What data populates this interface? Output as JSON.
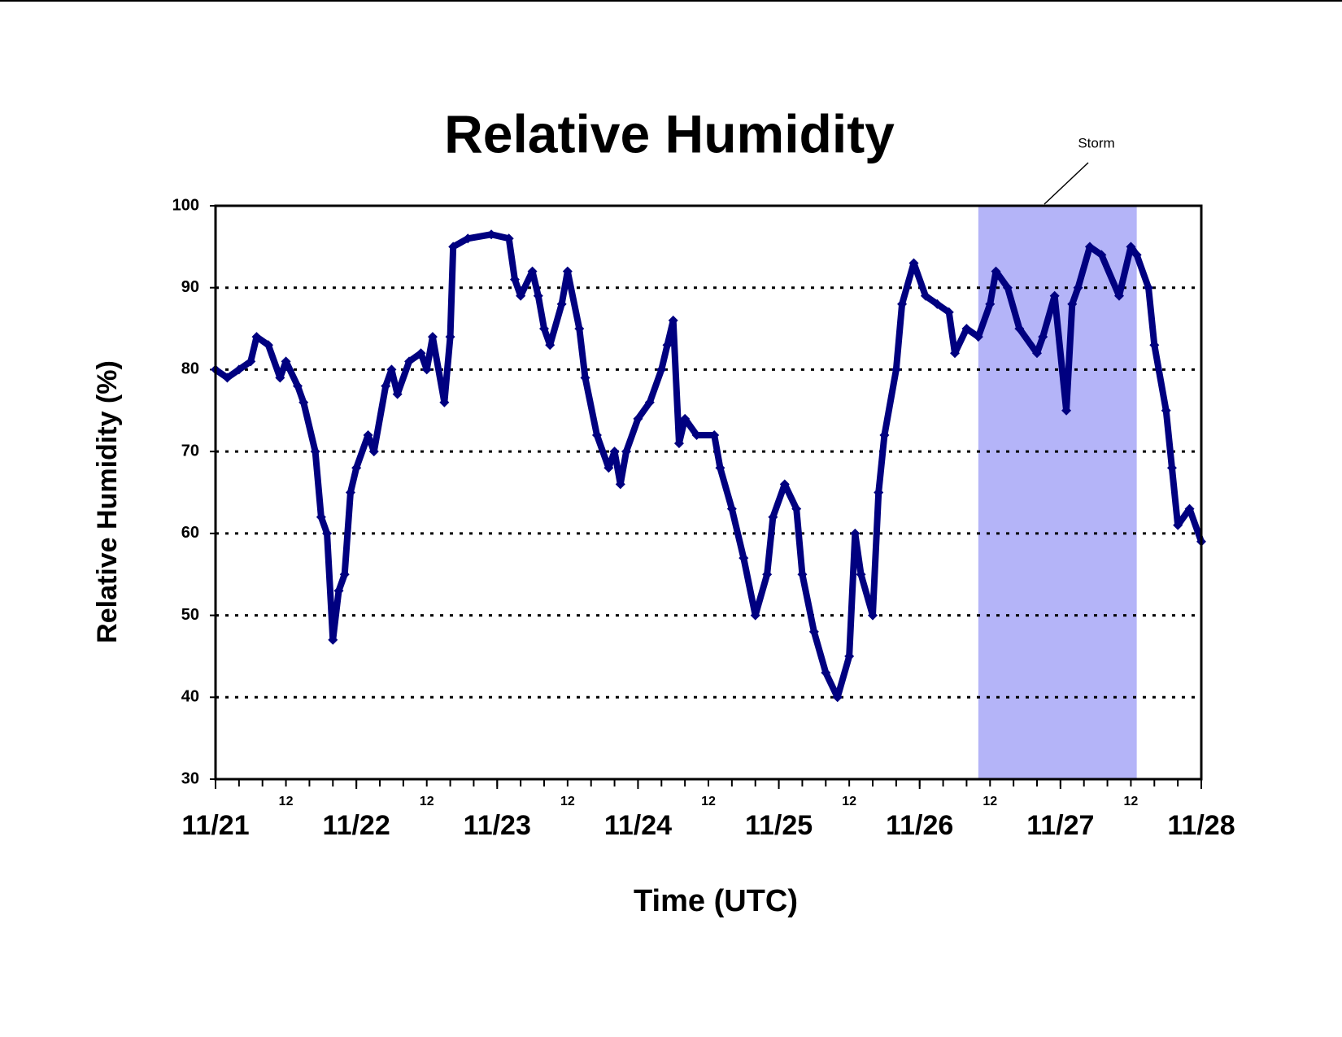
{
  "chart_data": {
    "type": "line",
    "title": "Relative Humidity",
    "x_label": "Time (UTC)",
    "y_label": "Relative Humidity (%)",
    "marker": "diamond",
    "series": [
      {
        "name": "Relative Humidity",
        "color": "#000080",
        "x": [
          0,
          2,
          4,
          6,
          7,
          9,
          11,
          12,
          14,
          15,
          17,
          18,
          19,
          20,
          21,
          22,
          23,
          24,
          26,
          27,
          29,
          30,
          31,
          33,
          35,
          36,
          37,
          39,
          40,
          40.5,
          43,
          47,
          50,
          51,
          52,
          54,
          55,
          56,
          57,
          59,
          60,
          62,
          63,
          65,
          67,
          68,
          69,
          70,
          72,
          74,
          76,
          77,
          78,
          79,
          80,
          82,
          85,
          86,
          88,
          90,
          92,
          94,
          95,
          97,
          99,
          100,
          102,
          104,
          106,
          108,
          109,
          110,
          112,
          113,
          114,
          116,
          117,
          119,
          121,
          123,
          125,
          126,
          128,
          130,
          132,
          133,
          135,
          137,
          140,
          141,
          143,
          145,
          146,
          147,
          149,
          151,
          154,
          156,
          157,
          159,
          160,
          162,
          163,
          164,
          166,
          168
        ],
        "values": [
          80,
          79,
          80,
          81,
          84,
          83,
          79,
          81,
          78,
          76,
          70,
          62,
          60,
          47,
          53,
          55,
          65,
          68,
          72,
          70,
          78,
          80,
          77,
          81,
          82,
          80,
          84,
          76,
          84,
          95,
          96,
          96.5,
          96,
          91,
          89,
          92,
          89,
          85,
          83,
          88,
          92,
          85,
          79,
          72,
          68,
          70,
          66,
          70,
          74,
          76,
          80,
          83,
          86,
          71,
          74,
          72,
          72,
          68,
          63,
          57,
          50,
          55,
          62,
          66,
          63,
          55,
          48,
          43,
          40,
          45,
          60,
          55,
          50,
          65,
          72,
          80,
          88,
          93,
          89,
          88,
          87,
          82,
          85,
          84,
          88,
          92,
          90,
          85,
          82,
          84,
          89,
          75,
          88,
          90,
          95,
          94,
          89,
          95,
          94,
          90,
          83,
          75,
          68,
          61,
          63,
          59
        ]
      }
    ],
    "xlim": [
      0,
      168
    ],
    "ylim": [
      30,
      100
    ],
    "yticks": [
      30,
      40,
      50,
      60,
      70,
      80,
      90,
      100
    ],
    "xticks": [
      {
        "value": 0,
        "label": "11/21"
      },
      {
        "value": 24,
        "label": "11/22"
      },
      {
        "value": 48,
        "label": "11/23"
      },
      {
        "value": 72,
        "label": "11/24"
      },
      {
        "value": 96,
        "label": "11/25"
      },
      {
        "value": 120,
        "label": "11/26"
      },
      {
        "value": 144,
        "label": "11/27"
      },
      {
        "value": 168,
        "label": "11/28"
      }
    ],
    "xticks_half": [
      {
        "value": 12,
        "label": "12"
      },
      {
        "value": 36,
        "label": "12"
      },
      {
        "value": 60,
        "label": "12"
      },
      {
        "value": 84,
        "label": "12"
      },
      {
        "value": 108,
        "label": "12"
      },
      {
        "value": 132,
        "label": "12"
      },
      {
        "value": 156,
        "label": "12"
      }
    ],
    "xticks_minor": [
      0,
      4,
      8,
      12,
      16,
      20,
      24,
      28,
      32,
      36,
      40,
      44,
      48,
      52,
      56,
      60,
      64,
      68,
      72,
      76,
      80,
      84,
      88,
      92,
      96,
      100,
      104,
      108,
      112,
      116,
      120,
      124,
      128,
      132,
      136,
      140,
      144,
      148,
      152,
      156,
      160,
      164,
      168
    ],
    "grid": true,
    "storm": {
      "label": "Storm",
      "start": 130,
      "end": 157,
      "color": "#b4b4f8"
    }
  }
}
